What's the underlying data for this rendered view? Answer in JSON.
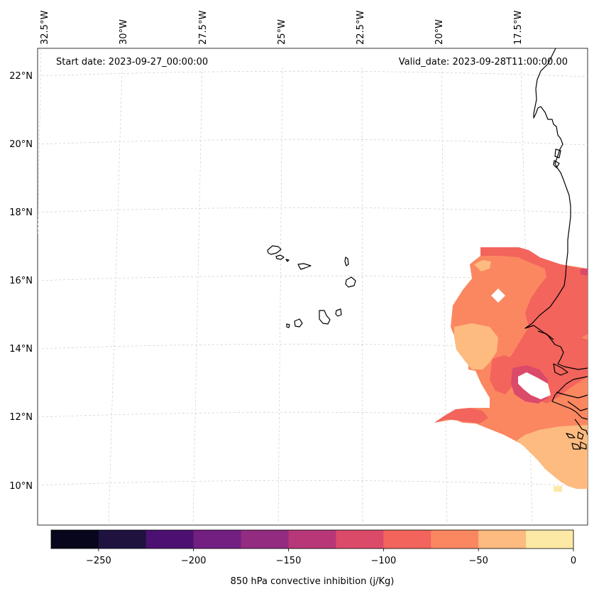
{
  "header": {
    "start_date": "Start date: 2023-09-27_00:00:00",
    "valid_date": "Valid_date: 2023-09-28T11:00:00.00"
  },
  "longitude_labels": [
    "32.5°W",
    "30°W",
    "27.5°W",
    "25°W",
    "22.5°W",
    "20°W",
    "17.5°W"
  ],
  "latitude_labels": [
    "22°N",
    "20°N",
    "18°N",
    "16°N",
    "14°N",
    "12°N",
    "10°N"
  ],
  "colorbar": {
    "label": "850 hPa convective inhibition (j/Kg)",
    "ticks": [
      "−250",
      "−200",
      "−150",
      "−100",
      "−50",
      "0"
    ],
    "colors": [
      "#07061c",
      "#20123f",
      "#4c1073",
      "#721f81",
      "#932b80",
      "#b73779",
      "#dc4a6a",
      "#f2645c",
      "#fb8761",
      "#fdbb80",
      "#fde9a6"
    ]
  },
  "field_colors": {
    "darkest": "#dc4a6a",
    "dark": "#f2645c",
    "mid": "#fb8761",
    "light": "#fdbb80",
    "lightest": "#fde9a6"
  }
}
